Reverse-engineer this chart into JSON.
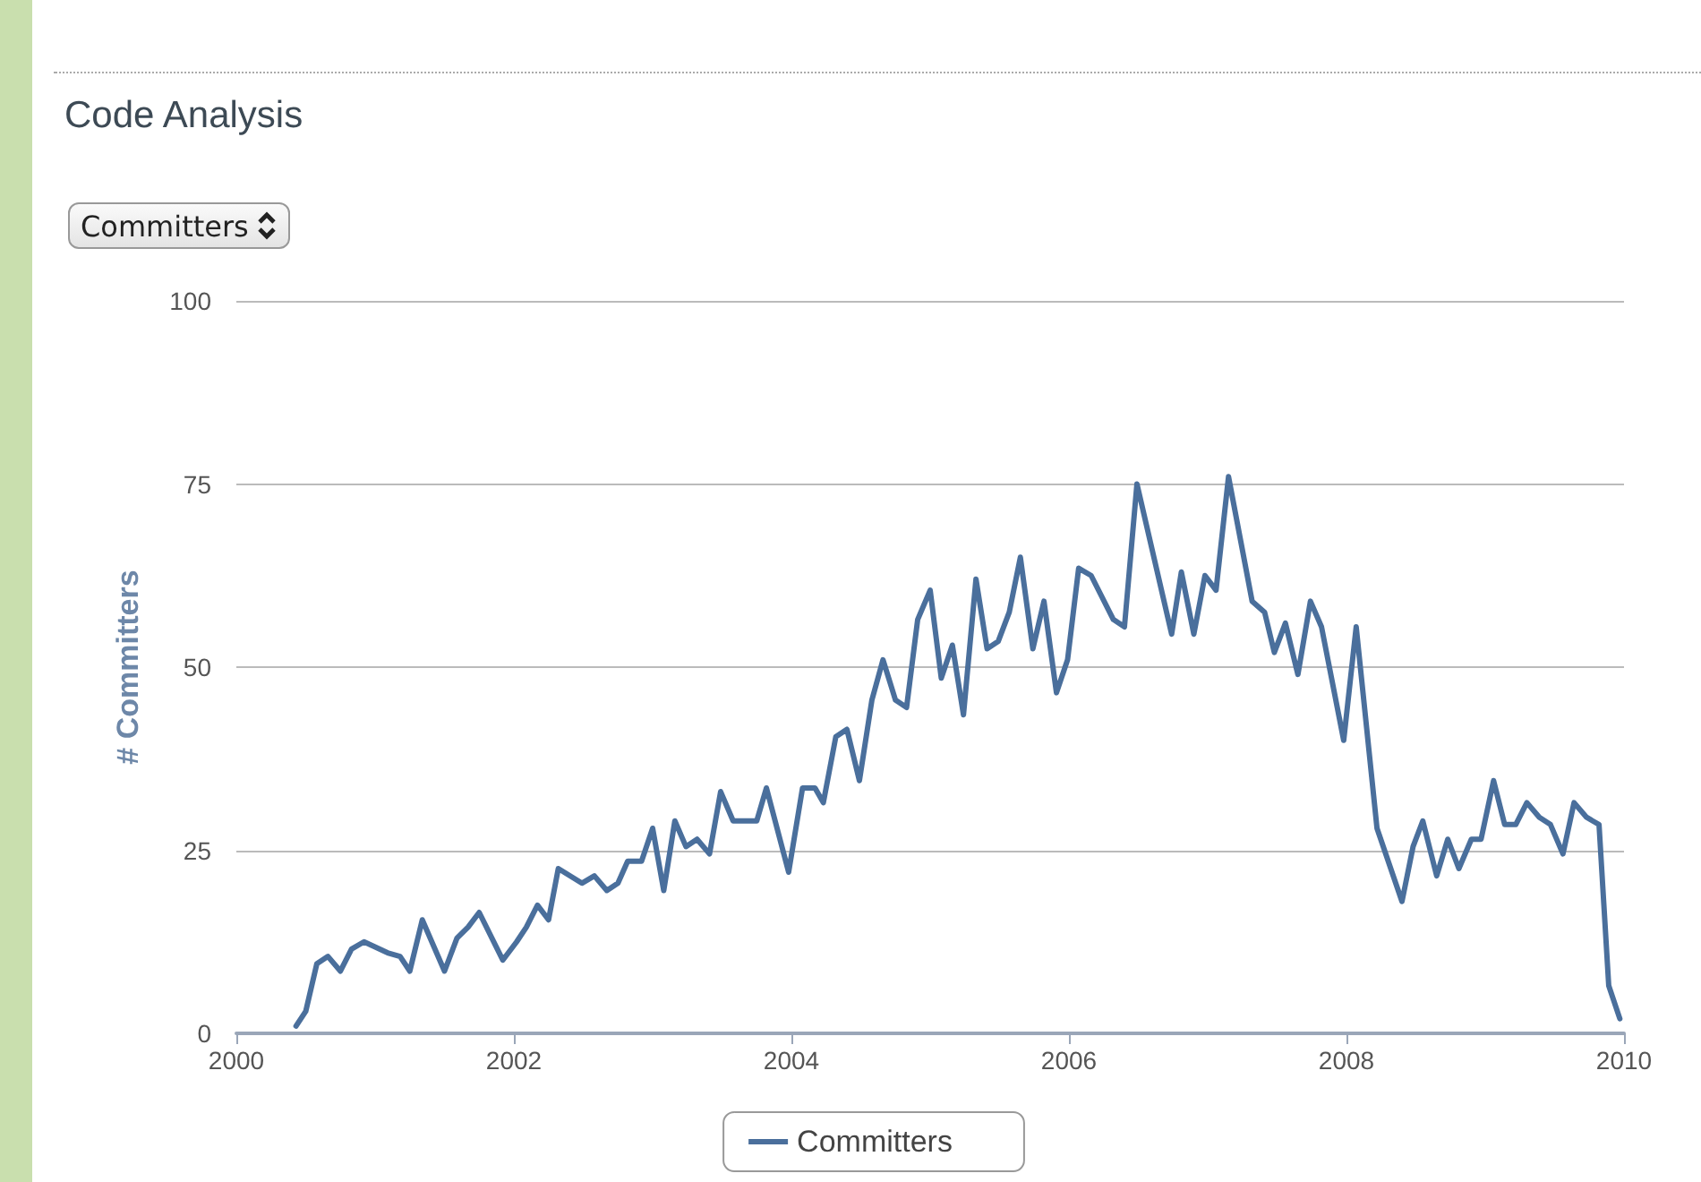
{
  "chart_data": {
    "type": "line",
    "title": "Code Analysis",
    "ylabel": "# Committers",
    "annotations": [
      "Committers"
    ],
    "xlim": [
      2000,
      2010
    ],
    "xticks": [
      2000,
      2002,
      2004,
      2006,
      2008,
      2010
    ],
    "ylim": [
      0,
      100
    ],
    "yticks": [
      0,
      25,
      50,
      75,
      100
    ],
    "grid": "y",
    "legend": "bottom",
    "marker": "none",
    "line_style": "solid",
    "series": [
      {
        "name": "Committers",
        "color": "#4a6f9c",
        "x": [
          2000.43,
          2000.5,
          2000.58,
          2000.66,
          2000.75,
          2000.83,
          2000.92,
          2001.09,
          2001.18,
          2001.25,
          2001.34,
          2001.5,
          2001.59,
          2001.67,
          2001.75,
          2001.92,
          2002.02,
          2002.09,
          2002.17,
          2002.25,
          2002.32,
          2002.49,
          2002.58,
          2002.67,
          2002.75,
          2002.82,
          2002.92,
          2003.0,
          2003.08,
          2003.16,
          2003.24,
          2003.32,
          2003.41,
          2003.49,
          2003.58,
          2003.75,
          2003.82,
          2003.98,
          2004.08,
          2004.17,
          2004.23,
          2004.32,
          2004.4,
          2004.49,
          2004.58,
          2004.66,
          2004.75,
          2004.83,
          2004.91,
          2005.0,
          2005.08,
          2005.16,
          2005.24,
          2005.33,
          2005.41,
          2005.49,
          2005.57,
          2005.65,
          2005.74,
          2005.82,
          2005.91,
          2005.99,
          2006.07,
          2006.16,
          2006.32,
          2006.4,
          2006.49,
          2006.74,
          2006.81,
          2006.9,
          2006.98,
          2007.06,
          2007.15,
          2007.32,
          2007.41,
          2007.48,
          2007.56,
          2007.65,
          2007.74,
          2007.82,
          2007.98,
          2008.07,
          2008.22,
          2008.4,
          2008.48,
          2008.55,
          2008.65,
          2008.73,
          2008.81,
          2008.9,
          2008.97,
          2009.06,
          2009.14,
          2009.22,
          2009.3,
          2009.39,
          2009.47,
          2009.56,
          2009.64,
          2009.73,
          2009.82,
          2009.89,
          2009.97
        ],
        "values": [
          1,
          3,
          9.5,
          10.5,
          8.5,
          11.5,
          12.5,
          11,
          10.5,
          8.5,
          15.5,
          8.5,
          13,
          14.5,
          16.5,
          10,
          12.5,
          14.5,
          17.5,
          15.5,
          22.5,
          20.5,
          21.5,
          19.5,
          20.5,
          23.5,
          23.5,
          28,
          19.5,
          29,
          25.5,
          26.5,
          24.5,
          33,
          29,
          29,
          33.5,
          22,
          33.5,
          33.5,
          31.5,
          40.5,
          41.5,
          34.5,
          45.5,
          51,
          45.5,
          44.5,
          56.5,
          60.5,
          48.5,
          53,
          43.5,
          62,
          52.5,
          53.5,
          57.5,
          65,
          52.5,
          59,
          46.5,
          51,
          63.5,
          62.5,
          56.5,
          55.5,
          75,
          54.5,
          63,
          54.5,
          62.5,
          60.5,
          76,
          59,
          57.5,
          52,
          56,
          49,
          59,
          55.5,
          40,
          55.5,
          28,
          18,
          25.5,
          29,
          21.5,
          26.5,
          22.5,
          26.5,
          26.5,
          34.5,
          28.5,
          28.5,
          31.5,
          29.5,
          28.5,
          24.5,
          31.5,
          29.5,
          28.5,
          6.5,
          2
        ]
      }
    ]
  }
}
